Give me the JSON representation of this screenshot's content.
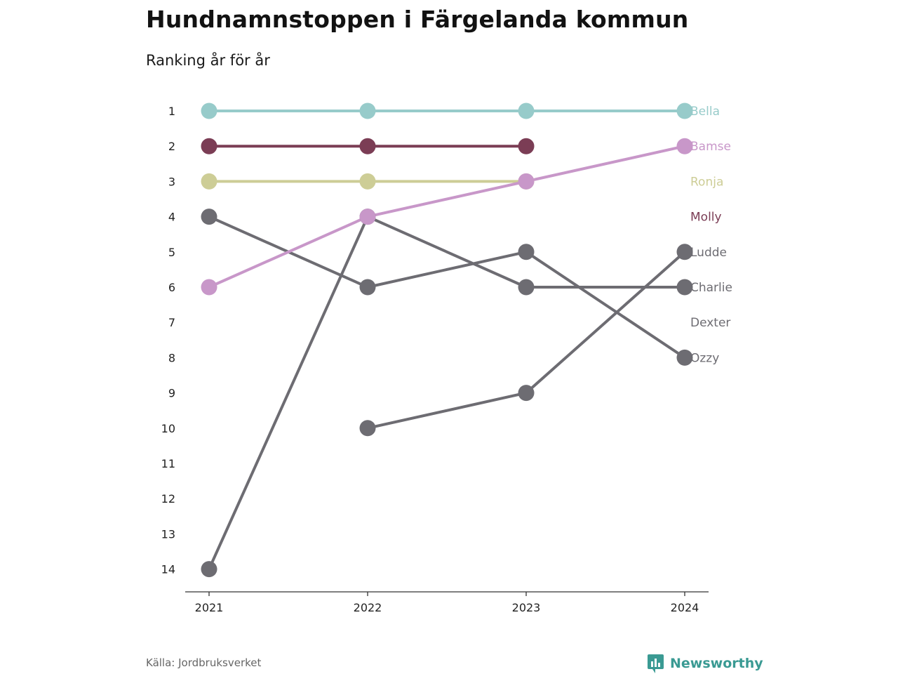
{
  "header": {
    "title": "Hundnamnstoppen i Färgelanda kommun",
    "subtitle": "Ranking år för år"
  },
  "footer": {
    "source": "Källa: Jordbruksverket",
    "brand": "Newsworthy",
    "brand_icon": "bar-chart-speech-bubble-icon"
  },
  "chart_data": {
    "type": "line",
    "title": "Hundnamnstoppen i Färgelanda kommun",
    "subtitle": "Ranking år för år",
    "x": [
      "2021",
      "2022",
      "2023",
      "2024"
    ],
    "y_ticks": [
      1,
      2,
      3,
      4,
      5,
      6,
      7,
      8,
      9,
      10,
      11,
      12,
      13,
      14
    ],
    "ylim": [
      1,
      14
    ],
    "y_inverted": true,
    "grid": false,
    "legend": "direct-labels-right",
    "series": [
      {
        "name": "Ozzy",
        "color": "#6d6c72",
        "values": [
          4,
          6,
          5,
          8
        ]
      },
      {
        "name": "Ludde",
        "color": "#6d6c72",
        "values": [
          null,
          10,
          9,
          5
        ]
      },
      {
        "name": "Charlie",
        "color": "#6d6c72",
        "values": [
          14,
          4,
          6,
          6
        ]
      },
      {
        "name": "Dexter",
        "color": "#6d6c72",
        "values": [
          null,
          null,
          null,
          null
        ]
      },
      {
        "name": "Ronja",
        "color": "#cdcd96",
        "values": [
          3,
          3,
          3,
          null
        ]
      },
      {
        "name": "Molly",
        "color": "#7b3d55",
        "values": [
          2,
          2,
          2,
          null
        ]
      },
      {
        "name": "Bamse",
        "color": "#c897c9",
        "values": [
          6,
          4,
          3,
          2
        ]
      },
      {
        "name": "Bella",
        "color": "#97cbca",
        "values": [
          1,
          1,
          1,
          1
        ]
      }
    ],
    "label_order": [
      "Bella",
      "Bamse",
      "Ronja",
      "Molly",
      "Ludde",
      "Charlie",
      "Dexter",
      "Ozzy"
    ]
  }
}
